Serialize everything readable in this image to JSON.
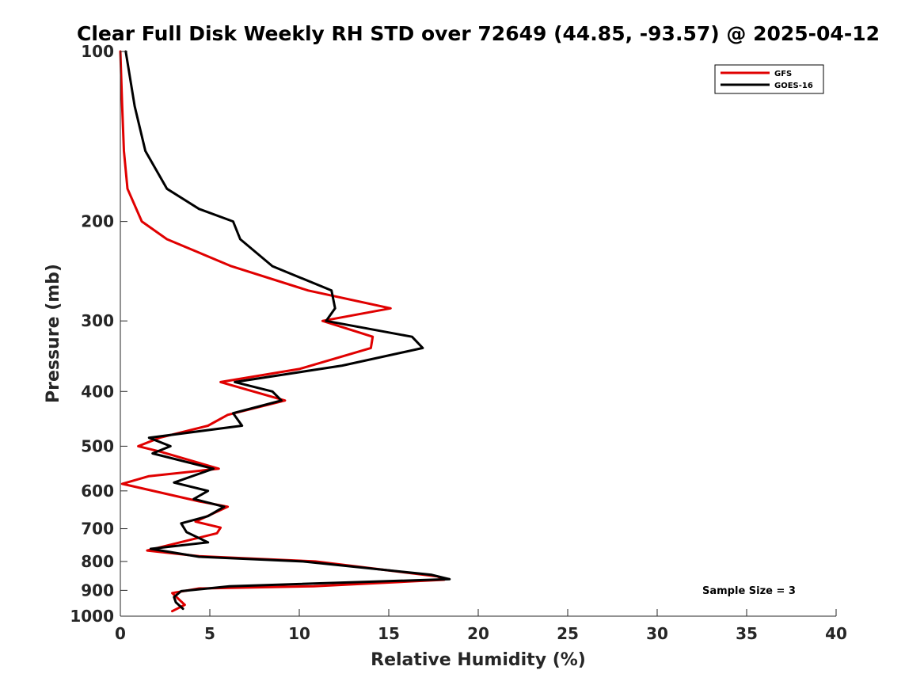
{
  "chart_data": {
    "type": "line",
    "title": "Clear Full Disk Weekly RH STD over 72649 (44.85, -93.57) @ 2025-04-12",
    "xlabel": "Relative Humidity (%)",
    "ylabel": "Pressure (mb)",
    "xlim": [
      0,
      40
    ],
    "ylim": [
      100,
      1000
    ],
    "y_scale": "log",
    "y_reversed": true,
    "x_ticks": [
      0,
      5,
      10,
      15,
      20,
      25,
      30,
      35,
      40
    ],
    "y_ticks": [
      100,
      200,
      300,
      400,
      500,
      600,
      700,
      800,
      900,
      1000
    ],
    "grid": false,
    "legend_position": "top-right",
    "annotation": "Sample Size = 3",
    "series": [
      {
        "name": "GFS",
        "color": "#e00000",
        "points": [
          [
            0.0,
            100
          ],
          [
            0.1,
            125
          ],
          [
            0.2,
            150
          ],
          [
            0.4,
            175
          ],
          [
            1.2,
            200
          ],
          [
            2.6,
            215
          ],
          [
            6.2,
            240
          ],
          [
            10.5,
            265
          ],
          [
            15.1,
            285
          ],
          [
            11.3,
            300
          ],
          [
            14.1,
            320
          ],
          [
            14.0,
            335
          ],
          [
            10.0,
            365
          ],
          [
            5.6,
            385
          ],
          [
            9.2,
            415
          ],
          [
            6.0,
            440
          ],
          [
            4.9,
            460
          ],
          [
            2.2,
            483
          ],
          [
            1.0,
            500
          ],
          [
            2.3,
            512
          ],
          [
            5.5,
            548
          ],
          [
            1.6,
            565
          ],
          [
            0.1,
            583
          ],
          [
            4.4,
            626
          ],
          [
            6.0,
            640
          ],
          [
            4.2,
            680
          ],
          [
            5.6,
            697
          ],
          [
            5.4,
            713
          ],
          [
            1.5,
            765
          ],
          [
            4.4,
            783
          ],
          [
            10.9,
            800
          ],
          [
            17.7,
            850
          ],
          [
            18.1,
            862
          ],
          [
            10.8,
            885
          ],
          [
            4.4,
            893
          ],
          [
            2.9,
            910
          ],
          [
            3.6,
            955
          ],
          [
            2.9,
            980
          ]
        ]
      },
      {
        "name": "GOES-16",
        "color": "#000000",
        "points": [
          [
            0.3,
            100
          ],
          [
            0.8,
            125
          ],
          [
            1.4,
            150
          ],
          [
            2.6,
            175
          ],
          [
            4.4,
            190
          ],
          [
            6.3,
            200
          ],
          [
            6.7,
            215
          ],
          [
            8.5,
            240
          ],
          [
            11.8,
            265
          ],
          [
            12.0,
            285
          ],
          [
            11.5,
            300
          ],
          [
            16.3,
            320
          ],
          [
            16.9,
            335
          ],
          [
            12.4,
            360
          ],
          [
            6.4,
            385
          ],
          [
            8.5,
            400
          ],
          [
            9.0,
            415
          ],
          [
            6.3,
            437
          ],
          [
            6.8,
            460
          ],
          [
            1.6,
            483
          ],
          [
            2.8,
            500
          ],
          [
            1.8,
            515
          ],
          [
            5.2,
            548
          ],
          [
            3.0,
            580
          ],
          [
            4.9,
            600
          ],
          [
            4.1,
            620
          ],
          [
            5.8,
            640
          ],
          [
            4.9,
            665
          ],
          [
            3.4,
            685
          ],
          [
            3.7,
            710
          ],
          [
            4.9,
            740
          ],
          [
            1.7,
            760
          ],
          [
            4.4,
            785
          ],
          [
            10.2,
            800
          ],
          [
            17.4,
            845
          ],
          [
            18.4,
            860
          ],
          [
            6.1,
            885
          ],
          [
            3.4,
            903
          ],
          [
            3.0,
            925
          ],
          [
            3.1,
            945
          ],
          [
            3.5,
            970
          ]
        ]
      }
    ]
  }
}
